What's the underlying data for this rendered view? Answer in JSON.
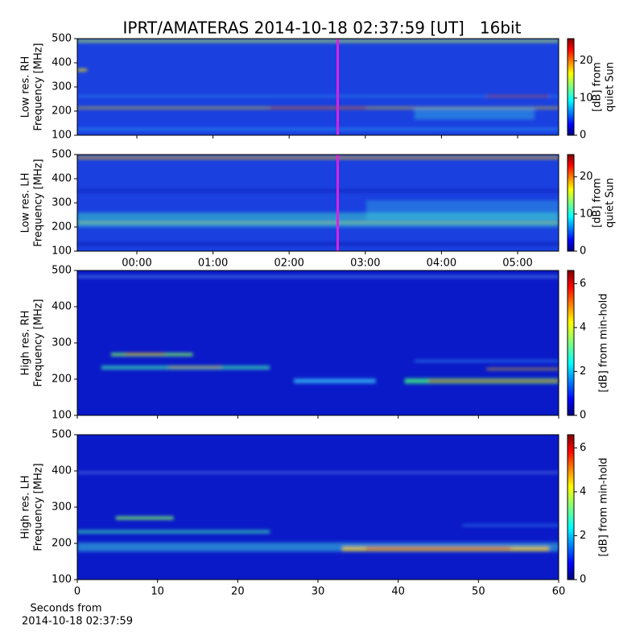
{
  "chart_data": [
    {
      "type": "heatmap",
      "title": "IPRT/AMATERAS 2014-10-18 02:37:59 [UT]   16bit",
      "ylabel": [
        "Low res. RH",
        "Frequency [MHz]"
      ],
      "ylim": [
        100,
        500
      ],
      "yticks": [
        100,
        200,
        300,
        400,
        500
      ],
      "colorbar": {
        "label": [
          "[dB] from",
          "quiet Sun"
        ],
        "lim": [
          0,
          26
        ],
        "ticks": [
          0,
          10,
          20
        ]
      }
    },
    {
      "type": "heatmap",
      "ylabel": [
        "Low res. LH",
        "Frequency [MHz]"
      ],
      "ylim": [
        100,
        500
      ],
      "yticks": [
        100,
        200,
        300,
        400,
        500
      ],
      "xticks": [
        "00:00",
        "01:00",
        "02:00",
        "03:00",
        "04:00",
        "05:00"
      ],
      "colorbar": {
        "label": [
          "[dB] from",
          "quiet Sun"
        ],
        "lim": [
          0,
          26
        ],
        "ticks": [
          0,
          10,
          20
        ]
      }
    },
    {
      "type": "heatmap",
      "ylabel": [
        "High res. RH",
        "Frequency [MHz]"
      ],
      "ylim": [
        100,
        500
      ],
      "yticks": [
        100,
        200,
        300,
        400,
        500
      ],
      "colorbar": {
        "label": [
          "[dB] from min-hold"
        ],
        "lim": [
          0,
          6.6
        ],
        "ticks": [
          0,
          2,
          4,
          6
        ]
      }
    },
    {
      "type": "heatmap",
      "ylabel": [
        "High res. LH",
        "Frequency [MHz]"
      ],
      "ylim": [
        100,
        500
      ],
      "yticks": [
        100,
        200,
        300,
        400,
        500
      ],
      "xlim": [
        0,
        60
      ],
      "xticks": [
        0,
        10,
        20,
        30,
        40,
        50,
        60
      ],
      "xlabel": [
        "Seconds from",
        "2014-10-18 02:37:59"
      ],
      "colorbar": {
        "label": [
          "[dB] from min-hold"
        ],
        "lim": [
          0,
          6.6
        ],
        "ticks": [
          0,
          2,
          4,
          6
        ]
      }
    }
  ]
}
